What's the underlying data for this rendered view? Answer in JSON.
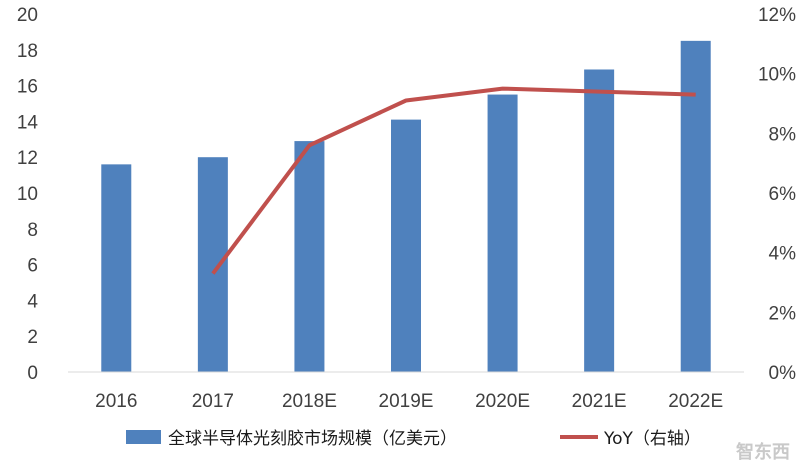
{
  "chart_data": {
    "type": "bar",
    "categories": [
      "2016",
      "2017",
      "2018E",
      "2019E",
      "2020E",
      "2021E",
      "2022E"
    ],
    "series": [
      {
        "name": "全球半导体光刻胶市场规模（亿美元）",
        "type": "bar",
        "axis": "left",
        "values": [
          11.6,
          12.0,
          12.9,
          14.1,
          15.5,
          16.9,
          18.5
        ],
        "color": "#4f81bd"
      },
      {
        "name": "YoY（右轴）",
        "type": "line",
        "axis": "right",
        "values": [
          null,
          3.3,
          7.6,
          9.1,
          9.5,
          9.4,
          9.3
        ],
        "color": "#c0504d"
      }
    ],
    "y_left": {
      "ylim": [
        0,
        20
      ],
      "ticks": [
        "0",
        "2",
        "4",
        "6",
        "8",
        "10",
        "12",
        "14",
        "16",
        "18",
        "20"
      ]
    },
    "y_right": {
      "ylim": [
        0,
        12
      ],
      "ticks": [
        "0%",
        "2%",
        "4%",
        "6%",
        "8%",
        "10%",
        "12%"
      ]
    },
    "grid": false,
    "legend_position": "bottom"
  },
  "watermark": "智东西"
}
